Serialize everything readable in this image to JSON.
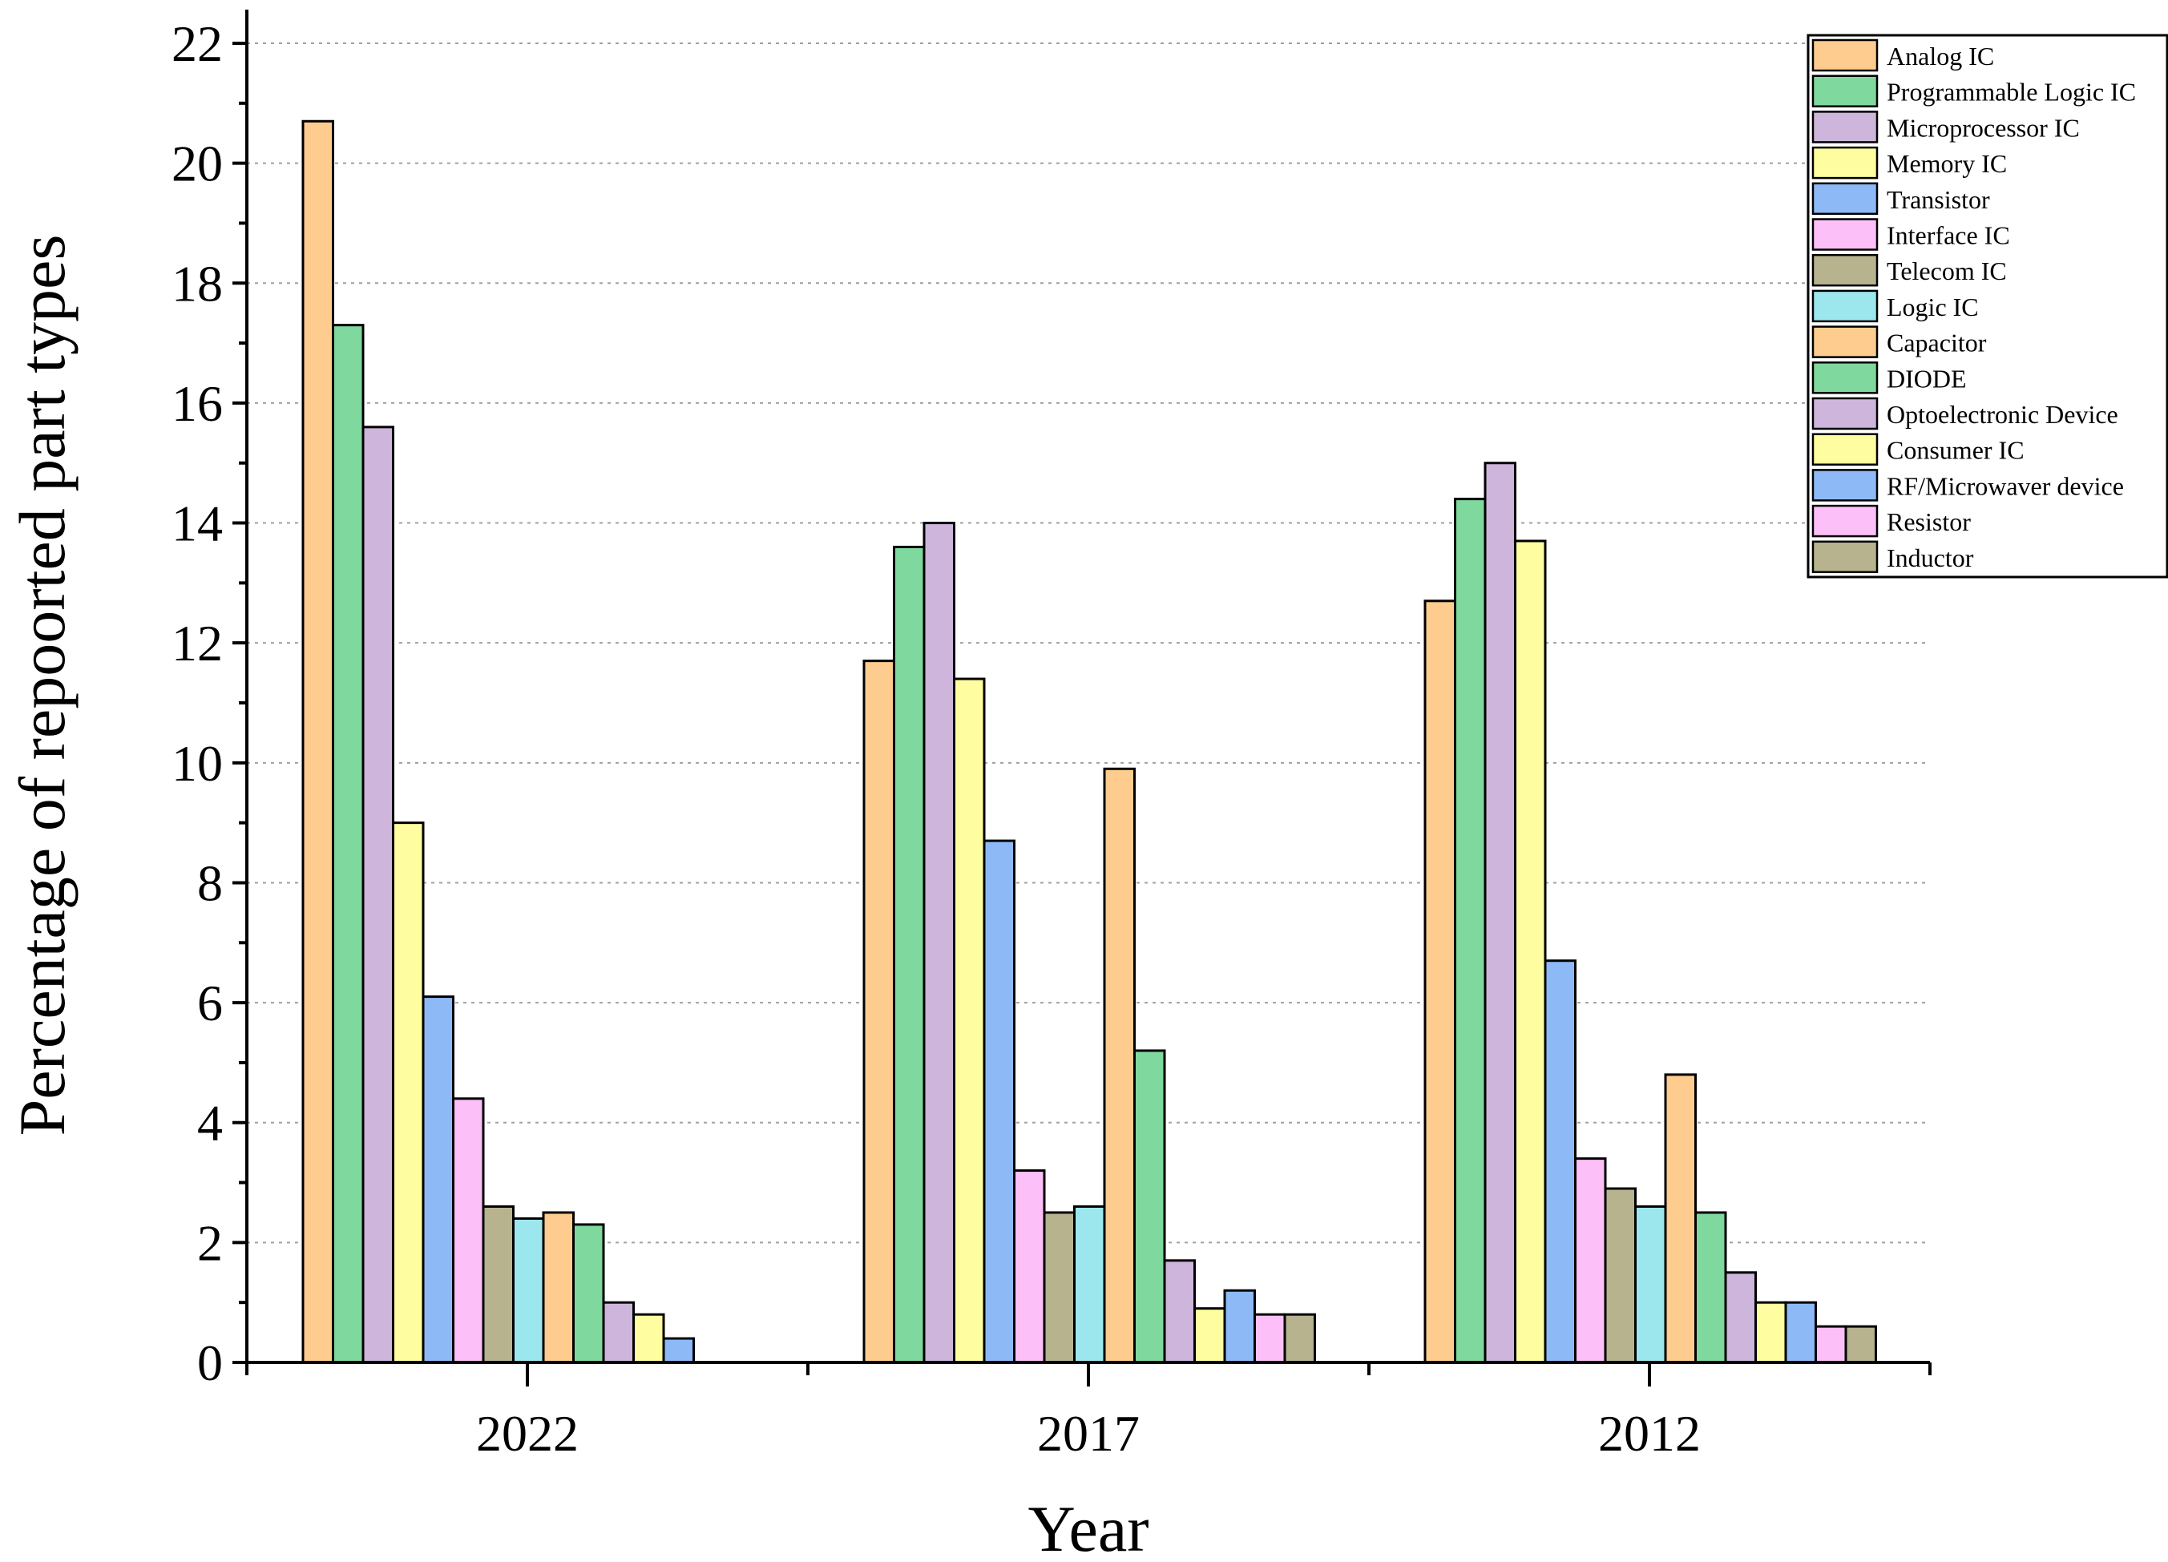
{
  "chart_data": {
    "type": "bar",
    "title": "",
    "xlabel": "Year",
    "ylabel": "Percentage of repoorted part types",
    "ylim": [
      0,
      22
    ],
    "yticks": [
      "0",
      "2",
      "4",
      "6",
      "8",
      "10",
      "12",
      "14",
      "16",
      "18",
      "20",
      "22"
    ],
    "grid": "horizontal-dotted",
    "legend_position": "top-right",
    "categories": [
      "2022",
      "2017",
      "2012"
    ],
    "series": [
      {
        "name": "Analog IC",
        "color": "#FECC8E",
        "values": [
          20.7,
          11.7,
          12.7
        ]
      },
      {
        "name": "Programmable Logic IC",
        "color": "#7FD89D",
        "values": [
          17.3,
          13.6,
          14.4
        ]
      },
      {
        "name": "Microprocessor IC",
        "color": "#CDB5DB",
        "values": [
          15.6,
          14.0,
          15.0
        ]
      },
      {
        "name": "Memory IC",
        "color": "#FEFEA0",
        "values": [
          9.0,
          11.4,
          13.7
        ]
      },
      {
        "name": "Transistor",
        "color": "#8DBAF7",
        "values": [
          6.1,
          8.7,
          6.7
        ]
      },
      {
        "name": "Interface IC",
        "color": "#FCBFF8",
        "values": [
          4.4,
          3.2,
          3.4
        ]
      },
      {
        "name": "Telecom IC",
        "color": "#B7B38E",
        "values": [
          2.6,
          2.5,
          2.9
        ]
      },
      {
        "name": "Logic IC",
        "color": "#9CE7EE",
        "values": [
          2.4,
          2.6,
          2.6
        ]
      },
      {
        "name": "Capacitor",
        "color": "#FECC8E",
        "values": [
          2.5,
          9.9,
          4.8
        ]
      },
      {
        "name": "DIODE",
        "color": "#7FD89D",
        "values": [
          2.3,
          5.2,
          2.5
        ]
      },
      {
        "name": "Optoelectronic Device",
        "color": "#CDB5DB",
        "values": [
          1.0,
          1.7,
          1.5
        ]
      },
      {
        "name": "Consumer IC",
        "color": "#FEFEA0",
        "values": [
          0.8,
          0.9,
          1.0
        ]
      },
      {
        "name": "RF/Microwaver device",
        "color": "#8DBAF7",
        "values": [
          0.4,
          1.2,
          1.0
        ]
      },
      {
        "name": "Resistor",
        "color": "#FCBFF8",
        "values": [
          null,
          0.8,
          0.6
        ]
      },
      {
        "name": "Inductor",
        "color": "#B7B38E",
        "values": [
          null,
          0.8,
          0.6
        ]
      }
    ]
  }
}
